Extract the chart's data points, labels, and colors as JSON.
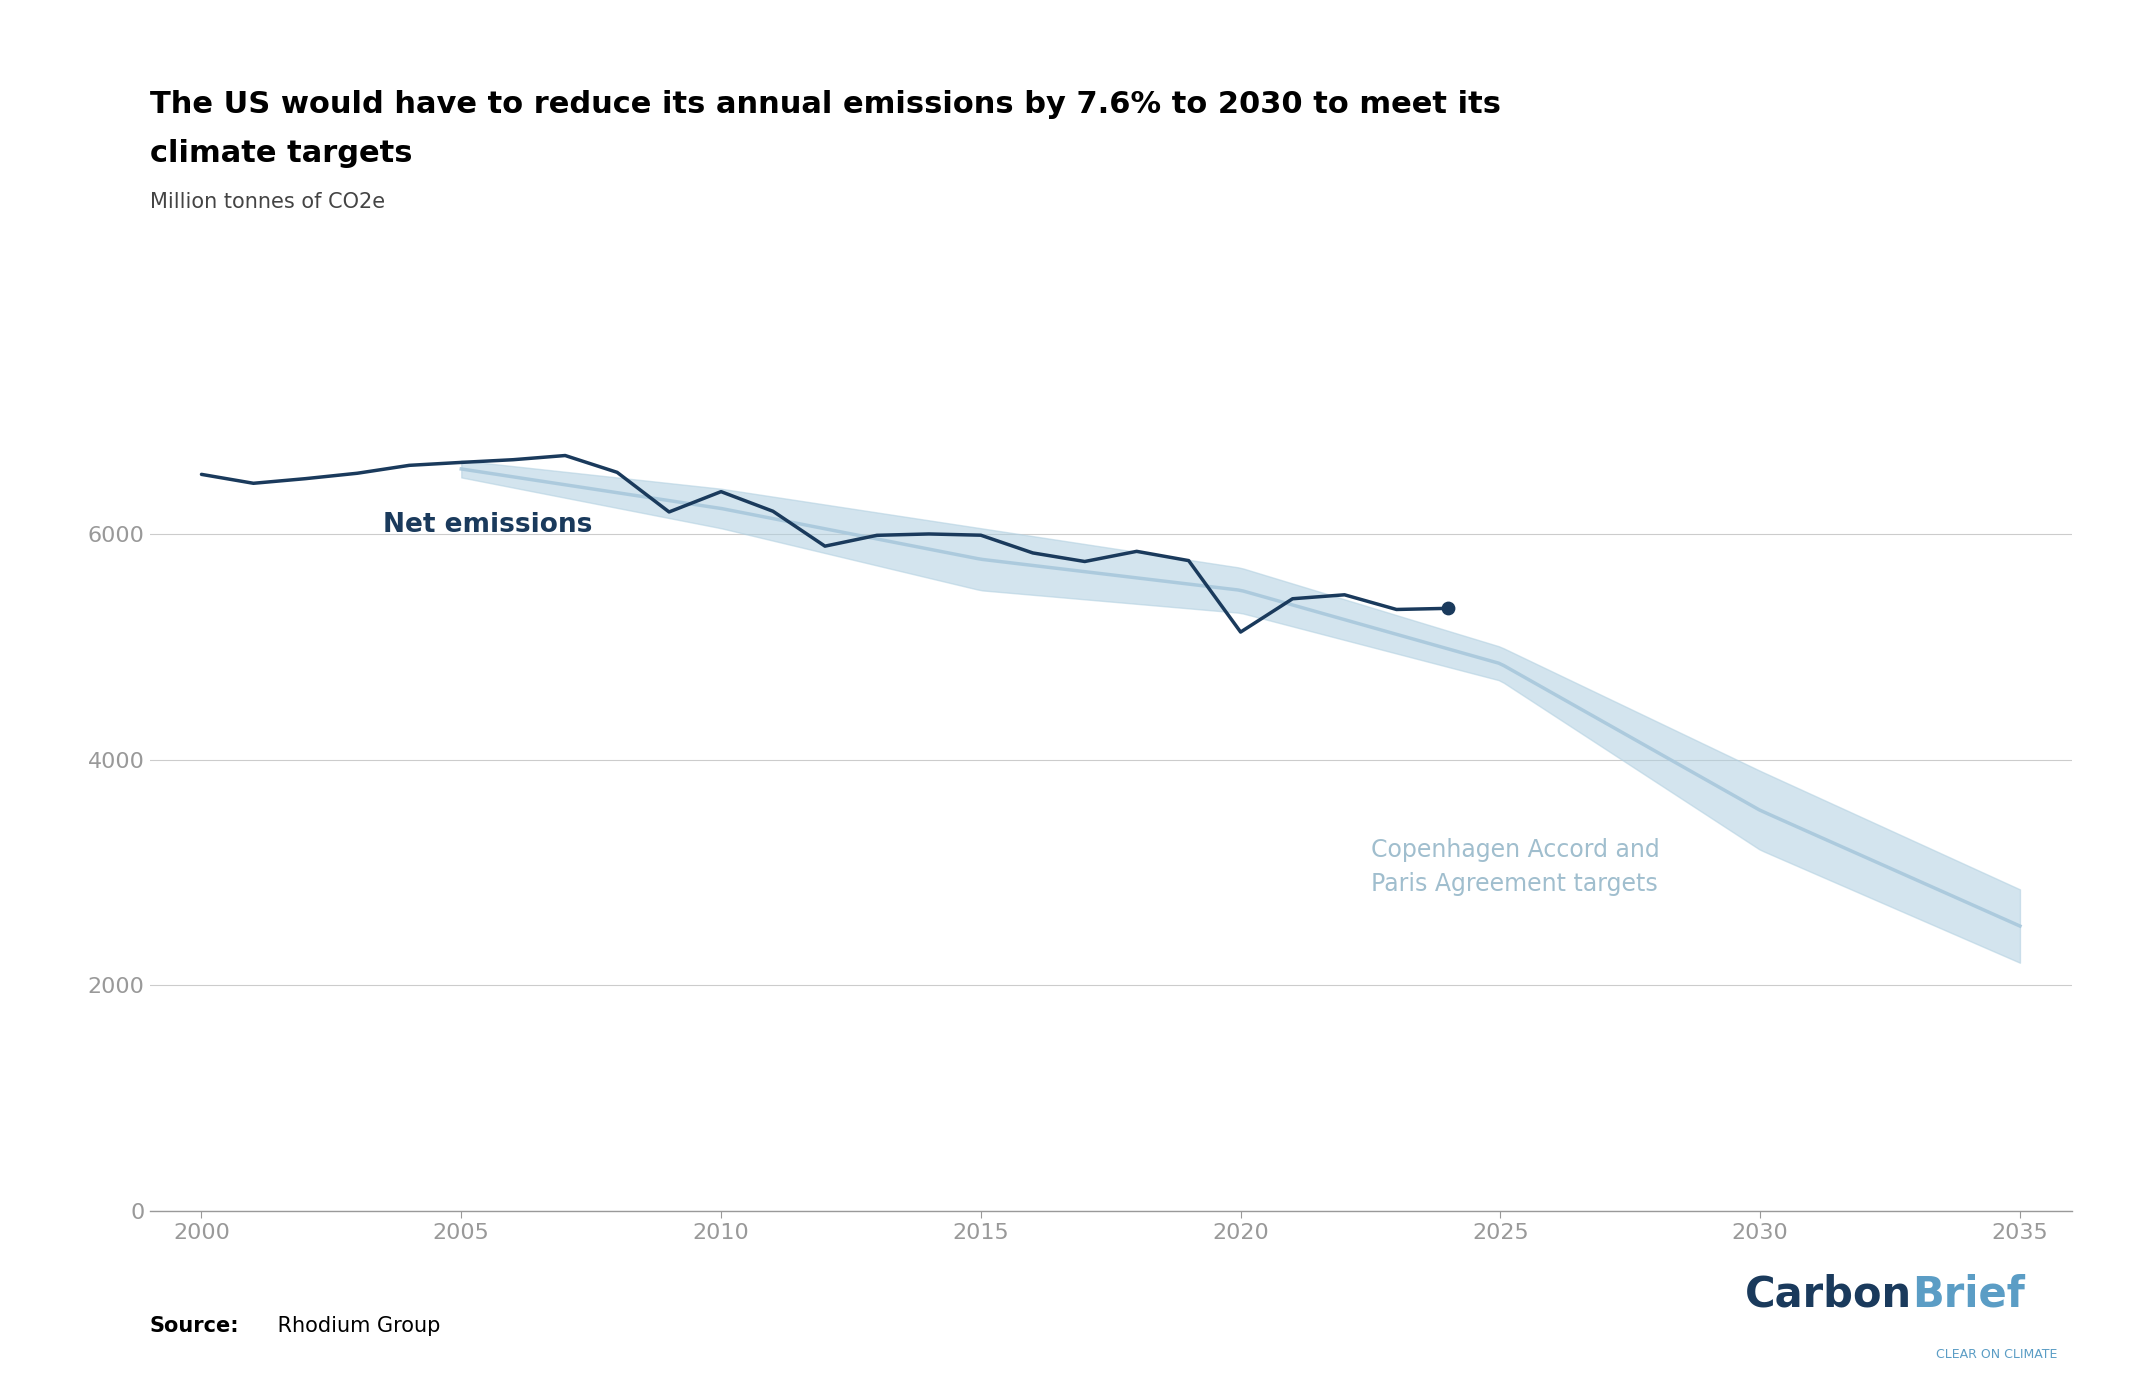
{
  "title_line1": "The US would have to reduce its annual emissions by 7.6% to 2030 to meet its",
  "title_line2": "climate targets",
  "subtitle": "Million tonnes of CO2e",
  "source_label": "Source:",
  "source_text": " Rhodium Group",
  "net_emissions_label": "Net emissions",
  "target_label_line1": "Copenhagen Accord and",
  "target_label_line2": "Paris Agreement targets",
  "net_emissions_years": [
    2000,
    2001,
    2002,
    2003,
    2004,
    2005,
    2006,
    2007,
    2008,
    2009,
    2010,
    2011,
    2012,
    2013,
    2014,
    2015,
    2016,
    2017,
    2018,
    2019,
    2020,
    2021,
    2022,
    2023,
    2024
  ],
  "net_emissions_values": [
    6527,
    6448,
    6489,
    6537,
    6607,
    6633,
    6657,
    6694,
    6545,
    6194,
    6374,
    6200,
    5891,
    5987,
    5999,
    5988,
    5831,
    5755,
    5845,
    5763,
    5130,
    5425,
    5460,
    5330,
    5340
  ],
  "target_upper_years": [
    2005,
    2010,
    2015,
    2020,
    2025,
    2030,
    2035
  ],
  "target_upper_values": [
    6650,
    6400,
    6050,
    5700,
    5000,
    3900,
    2850
  ],
  "target_lower_years": [
    2005,
    2010,
    2015,
    2020,
    2025,
    2030,
    2035
  ],
  "target_lower_values": [
    6500,
    6050,
    5500,
    5300,
    4700,
    3200,
    2200
  ],
  "net_color": "#1a3a5c",
  "target_band_color": "#b0cfe0",
  "target_center_color": "#a8c8dc",
  "bg_color": "#ffffff",
  "grid_color": "#cccccc",
  "title_color": "#000000",
  "subtitle_color": "#444444",
  "net_label_color": "#1a3a5c",
  "target_label_color": "#a0bece",
  "axis_color": "#999999",
  "tick_color": "#999999",
  "ylim_min": 0,
  "ylim_max": 7400,
  "xlim_min": 1999,
  "xlim_max": 2036,
  "yticks": [
    0,
    2000,
    4000,
    6000
  ],
  "xticks": [
    2000,
    2005,
    2010,
    2015,
    2020,
    2025,
    2030,
    2035
  ],
  "title_fontsize": 22,
  "subtitle_fontsize": 15,
  "axis_tick_fontsize": 16,
  "label_fontsize": 17,
  "source_fontsize": 15,
  "carbonbrief_fontsize": 30,
  "carbonbrief_sub_fontsize": 9,
  "carbon_color": "#1a3a5c",
  "brief_color": "#5b9dc5"
}
